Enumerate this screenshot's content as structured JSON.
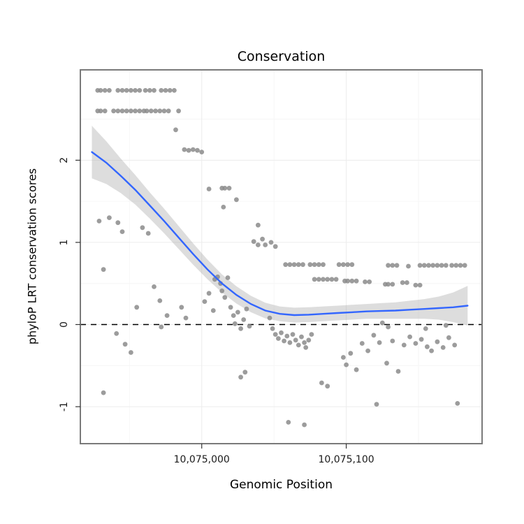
{
  "chart_data": {
    "type": "scatter",
    "title": "Conservation",
    "xlabel": "Genomic Position",
    "ylabel": "phyloP LRT conservation scores",
    "legend": "none",
    "grid": "on",
    "x_axis": {
      "range": [
        10074916,
        10075194
      ],
      "ticks": [
        10075000,
        10075100
      ],
      "tick_labels": [
        "10,075,000",
        "10,075,100"
      ],
      "minor_ticks": [
        10074950,
        10075050,
        10075150
      ]
    },
    "y_axis": {
      "range": [
        -1.45,
        3.1
      ],
      "ticks": [
        -1,
        0,
        1,
        2
      ],
      "tick_labels": [
        "-1",
        "0",
        "1",
        "2"
      ],
      "minor_ticks": [
        -0.5,
        0.5,
        1.5,
        2.5
      ]
    },
    "hline": {
      "y": 0,
      "style": "dashed"
    },
    "colors": {
      "point": "#8b8b8b",
      "smooth": "#3366FF",
      "ribbon": "#9e9e9e",
      "hline": "#000000",
      "border": "#7a7a7a",
      "grid_major": "#ececec",
      "grid_minor": "#f6f6f6",
      "panel_bg": "#ffffff",
      "tick": "#333333",
      "text": "#1a1a1a",
      "background": "#ffffff"
    },
    "points": [
      [
        10074928,
        2.85
      ],
      [
        10074930,
        2.85
      ],
      [
        10074933,
        2.85
      ],
      [
        10074936,
        2.85
      ],
      [
        10074942,
        2.85
      ],
      [
        10074945,
        2.85
      ],
      [
        10074948,
        2.85
      ],
      [
        10074951,
        2.85
      ],
      [
        10074954,
        2.85
      ],
      [
        10074957,
        2.85
      ],
      [
        10074961,
        2.85
      ],
      [
        10074964,
        2.85
      ],
      [
        10074967,
        2.85
      ],
      [
        10074972,
        2.85
      ],
      [
        10074975,
        2.85
      ],
      [
        10074978,
        2.85
      ],
      [
        10074981,
        2.85
      ],
      [
        10074928,
        2.6
      ],
      [
        10074930,
        2.6
      ],
      [
        10074933,
        2.6
      ],
      [
        10074939,
        2.6
      ],
      [
        10074942,
        2.6
      ],
      [
        10074945,
        2.6
      ],
      [
        10074948,
        2.6
      ],
      [
        10074951,
        2.6
      ],
      [
        10074954,
        2.6
      ],
      [
        10074957,
        2.6
      ],
      [
        10074960,
        2.6
      ],
      [
        10074962,
        2.6
      ],
      [
        10074965,
        2.6
      ],
      [
        10074968,
        2.6
      ],
      [
        10074971,
        2.6
      ],
      [
        10074974,
        2.6
      ],
      [
        10074977,
        2.6
      ],
      [
        10074984,
        2.6
      ],
      [
        10074982,
        2.37
      ],
      [
        10074988,
        2.13
      ],
      [
        10074991,
        2.12
      ],
      [
        10074994,
        2.13
      ],
      [
        10074997,
        2.12
      ],
      [
        10075000,
        2.1
      ],
      [
        10075005,
        1.65
      ],
      [
        10075014,
        1.66
      ],
      [
        10075016,
        1.66
      ],
      [
        10075019,
        1.66
      ],
      [
        10075024,
        1.52
      ],
      [
        10075015,
        1.43
      ],
      [
        10074929,
        1.26
      ],
      [
        10074936,
        1.3
      ],
      [
        10074942,
        1.24
      ],
      [
        10074945,
        1.13
      ],
      [
        10074959,
        1.18
      ],
      [
        10074963,
        1.11
      ],
      [
        10074932,
        0.67
      ],
      [
        10074955,
        0.21
      ],
      [
        10074967,
        0.46
      ],
      [
        10074932,
        -0.83
      ],
      [
        10074941,
        -0.11
      ],
      [
        10074947,
        -0.24
      ],
      [
        10074951,
        -0.34
      ],
      [
        10074971,
        0.29
      ],
      [
        10074972,
        -0.03
      ],
      [
        10074976,
        0.11
      ],
      [
        10074986,
        0.21
      ],
      [
        10074989,
        0.08
      ],
      [
        10075002,
        0.28
      ],
      [
        10075005,
        0.38
      ],
      [
        10075008,
        0.17
      ],
      [
        10075009,
        0.55
      ],
      [
        10075011,
        0.58
      ],
      [
        10075013,
        0.5
      ],
      [
        10075014,
        0.41
      ],
      [
        10075016,
        0.33
      ],
      [
        10075018,
        0.57
      ],
      [
        10075020,
        0.21
      ],
      [
        10075022,
        0.11
      ],
      [
        10075023,
        0.01
      ],
      [
        10075025,
        0.15
      ],
      [
        10075027,
        -0.05
      ],
      [
        10075029,
        0.06
      ],
      [
        10075031,
        0.19
      ],
      [
        10075033,
        -0.02
      ],
      [
        10075027,
        -0.64
      ],
      [
        10075030,
        -0.58
      ],
      [
        10075036,
        1.01
      ],
      [
        10075039,
        0.97
      ],
      [
        10075042,
        1.04
      ],
      [
        10075044,
        0.97
      ],
      [
        10075048,
        1.0
      ],
      [
        10075051,
        0.95
      ],
      [
        10075039,
        1.21
      ],
      [
        10075047,
        0.08
      ],
      [
        10075049,
        -0.05
      ],
      [
        10075051,
        -0.12
      ],
      [
        10075053,
        -0.17
      ],
      [
        10075055,
        -0.1
      ],
      [
        10075057,
        -0.2
      ],
      [
        10075059,
        -0.14
      ],
      [
        10075061,
        -0.22
      ],
      [
        10075063,
        -0.12
      ],
      [
        10075065,
        -0.19
      ],
      [
        10075067,
        -0.25
      ],
      [
        10075069,
        -0.15
      ],
      [
        10075071,
        -0.22
      ],
      [
        10075072,
        -0.28
      ],
      [
        10075074,
        -0.19
      ],
      [
        10075076,
        -0.12
      ],
      [
        10075060,
        -1.19
      ],
      [
        10075071,
        -1.22
      ],
      [
        10075083,
        -0.71
      ],
      [
        10075087,
        -0.75
      ],
      [
        10075058,
        0.73
      ],
      [
        10075061,
        0.73
      ],
      [
        10075064,
        0.73
      ],
      [
        10075067,
        0.73
      ],
      [
        10075070,
        0.73
      ],
      [
        10075075,
        0.73
      ],
      [
        10075078,
        0.73
      ],
      [
        10075081,
        0.73
      ],
      [
        10075084,
        0.73
      ],
      [
        10075095,
        0.73
      ],
      [
        10075098,
        0.73
      ],
      [
        10075101,
        0.73
      ],
      [
        10075104,
        0.73
      ],
      [
        10075078,
        0.55
      ],
      [
        10075081,
        0.55
      ],
      [
        10075084,
        0.55
      ],
      [
        10075087,
        0.55
      ],
      [
        10075090,
        0.55
      ],
      [
        10075093,
        0.55
      ],
      [
        10075099,
        0.53
      ],
      [
        10075101,
        0.53
      ],
      [
        10075104,
        0.53
      ],
      [
        10075107,
        0.53
      ],
      [
        10075113,
        0.52
      ],
      [
        10075116,
        0.52
      ],
      [
        10075098,
        -0.4
      ],
      [
        10075100,
        -0.49
      ],
      [
        10075103,
        -0.35
      ],
      [
        10075107,
        -0.55
      ],
      [
        10075111,
        -0.23
      ],
      [
        10075115,
        -0.32
      ],
      [
        10075119,
        -0.13
      ],
      [
        10075123,
        -0.22
      ],
      [
        10075121,
        -0.97
      ],
      [
        10075128,
        -0.47
      ],
      [
        10075132,
        -0.2
      ],
      [
        10075136,
        -0.57
      ],
      [
        10075140,
        -0.25
      ],
      [
        10075144,
        -0.15
      ],
      [
        10075148,
        -0.23
      ],
      [
        10075152,
        -0.18
      ],
      [
        10075156,
        -0.27
      ],
      [
        10075159,
        -0.32
      ],
      [
        10075163,
        -0.21
      ],
      [
        10075167,
        -0.28
      ],
      [
        10075171,
        -0.16
      ],
      [
        10075175,
        -0.25
      ],
      [
        10075177,
        -0.96
      ],
      [
        10075129,
        0.72
      ],
      [
        10075132,
        0.72
      ],
      [
        10075135,
        0.72
      ],
      [
        10075143,
        0.71
      ],
      [
        10075151,
        0.72
      ],
      [
        10075154,
        0.72
      ],
      [
        10075157,
        0.72
      ],
      [
        10075160,
        0.72
      ],
      [
        10075163,
        0.72
      ],
      [
        10075166,
        0.72
      ],
      [
        10075169,
        0.72
      ],
      [
        10075173,
        0.72
      ],
      [
        10075176,
        0.72
      ],
      [
        10075179,
        0.72
      ],
      [
        10075182,
        0.72
      ],
      [
        10075127,
        0.49
      ],
      [
        10075129,
        0.49
      ],
      [
        10075132,
        0.49
      ],
      [
        10075139,
        0.51
      ],
      [
        10075142,
        0.51
      ],
      [
        10075148,
        0.48
      ],
      [
        10075151,
        0.48
      ],
      [
        10075125,
        0.02
      ],
      [
        10075129,
        -0.03
      ],
      [
        10075155,
        -0.05
      ],
      [
        10075169,
        -0.01
      ]
    ],
    "smooth": {
      "name": "loess fit with confidence ribbon",
      "x": [
        10074924,
        10074934,
        10074944,
        10074954,
        10074964,
        10074974,
        10074984,
        10074994,
        10075004,
        10075014,
        10075024,
        10075034,
        10075044,
        10075054,
        10075064,
        10075074,
        10075084,
        10075094,
        10075104,
        10075114,
        10075124,
        10075134,
        10075144,
        10075154,
        10075164,
        10075174,
        10075184
      ],
      "y": [
        2.1,
        1.97,
        1.81,
        1.64,
        1.45,
        1.26,
        1.06,
        0.86,
        0.67,
        0.5,
        0.36,
        0.25,
        0.17,
        0.13,
        0.115,
        0.12,
        0.13,
        0.14,
        0.15,
        0.16,
        0.165,
        0.17,
        0.18,
        0.19,
        0.2,
        0.21,
        0.23
      ],
      "ci": [
        0.32,
        0.26,
        0.21,
        0.18,
        0.16,
        0.15,
        0.14,
        0.13,
        0.12,
        0.11,
        0.105,
        0.1,
        0.095,
        0.09,
        0.09,
        0.09,
        0.09,
        0.09,
        0.09,
        0.09,
        0.095,
        0.1,
        0.11,
        0.12,
        0.14,
        0.18,
        0.24
      ]
    }
  }
}
